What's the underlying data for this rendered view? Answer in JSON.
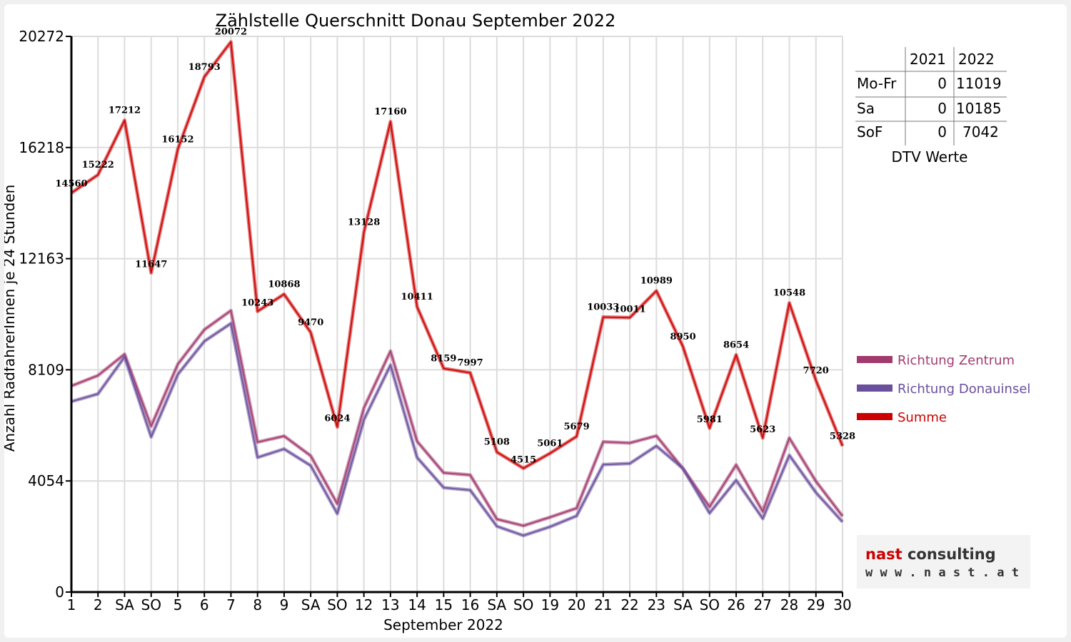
{
  "chart_data": {
    "type": "line",
    "title": "Zählstelle Querschnitt Donau September 2022",
    "xlabel": "September 2022",
    "ylabel": "Anzahl RadfahrerInnen je 24 Stunden",
    "ylim": [
      0,
      20272
    ],
    "yticks": [
      0,
      4054,
      8109,
      12163,
      16218,
      20272
    ],
    "grid": true,
    "legend_position": "right",
    "categories": [
      "1",
      "2",
      "SA",
      "SO",
      "5",
      "6",
      "7",
      "8",
      "9",
      "SA",
      "SO",
      "12",
      "13",
      "14",
      "15",
      "16",
      "SA",
      "SO",
      "19",
      "20",
      "21",
      "22",
      "23",
      "SA",
      "SO",
      "26",
      "27",
      "28",
      "29",
      "30"
    ],
    "highlight_categories": [
      "SO"
    ],
    "highlight_color": "#dd0000",
    "series": [
      {
        "name": "Richtung Zentrum",
        "color": "#a33a6e",
        "values": [
          7520,
          7900,
          8680,
          6050,
          8310,
          9570,
          10270,
          5470,
          5690,
          4970,
          3220,
          6720,
          8790,
          5500,
          4350,
          4270,
          2660,
          2420,
          2730,
          3060,
          5480,
          5440,
          5700,
          4500,
          3110,
          4640,
          2940,
          5620,
          4040,
          2770
        ]
      },
      {
        "name": "Richtung Donauinsel",
        "color": "#6a4f9c",
        "values": [
          6950,
          7230,
          8580,
          5660,
          7940,
          9150,
          9800,
          4910,
          5220,
          4610,
          2860,
          6290,
          8280,
          4910,
          3810,
          3720,
          2400,
          2060,
          2380,
          2780,
          4650,
          4690,
          5330,
          4510,
          2880,
          4080,
          2680,
          4990,
          3630,
          2560
        ]
      },
      {
        "name": "Summe",
        "color": "#cc0000",
        "values": [
          14560,
          15222,
          17212,
          11647,
          16152,
          18793,
          20072,
          10243,
          10868,
          9470,
          6024,
          13128,
          17160,
          10411,
          8159,
          7997,
          5108,
          4515,
          5061,
          5679,
          10033,
          10011,
          10989,
          8950,
          5981,
          8654,
          5623,
          10548,
          7720,
          5328
        ]
      }
    ]
  },
  "dtv_table": {
    "caption": "DTV Werte",
    "columns": [
      "2021",
      "2022"
    ],
    "rows": [
      {
        "label": "Mo-Fr",
        "v2021": "0",
        "v2022": "11019"
      },
      {
        "label": "Sa",
        "v2021": "0",
        "v2022": "10185"
      },
      {
        "label": "SoF",
        "v2021": "0",
        "v2022": "7042"
      }
    ]
  },
  "logo": {
    "line1_a": "nast",
    "line1_b": "consulting",
    "line2": "w w w . n a s t . a t",
    "color_red": "#cc0000",
    "color_dark": "#333333"
  }
}
